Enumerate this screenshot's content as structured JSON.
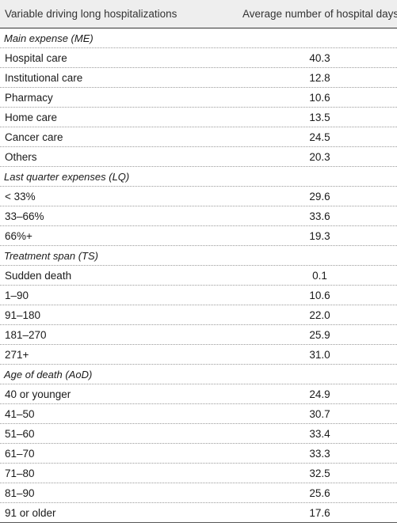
{
  "table": {
    "headers": {
      "col1": "Variable driving long hospitalizations",
      "col2": "Average number of hospital days"
    },
    "sections": [
      {
        "title": "Main expense (ME)",
        "rows": [
          {
            "label": "Hospital care",
            "value": "40.3"
          },
          {
            "label": "Institutional care",
            "value": "12.8"
          },
          {
            "label": "Pharmacy",
            "value": "10.6"
          },
          {
            "label": "Home care",
            "value": "13.5"
          },
          {
            "label": "Cancer care",
            "value": "24.5"
          },
          {
            "label": "Others",
            "value": "20.3"
          }
        ]
      },
      {
        "title": "Last quarter expenses (LQ)",
        "rows": [
          {
            "label": "< 33%",
            "value": "29.6"
          },
          {
            "label": "33–66%",
            "value": "33.6"
          },
          {
            "label": "66%+",
            "value": "19.3"
          }
        ]
      },
      {
        "title": "Treatment span (TS)",
        "rows": [
          {
            "label": "Sudden death",
            "value": "0.1"
          },
          {
            "label": "1–90",
            "value": "10.6"
          },
          {
            "label": "91–180",
            "value": "22.0"
          },
          {
            "label": "181–270",
            "value": "25.9"
          },
          {
            "label": "271+",
            "value": "31.0"
          }
        ]
      },
      {
        "title": "Age of death (AoD)",
        "rows": [
          {
            "label": "40 or younger",
            "value": "24.9"
          },
          {
            "label": "41–50",
            "value": "30.7"
          },
          {
            "label": "51–60",
            "value": "33.4"
          },
          {
            "label": "61–70",
            "value": "33.3"
          },
          {
            "label": "71–80",
            "value": "32.5"
          },
          {
            "label": "81–90",
            "value": "25.6"
          },
          {
            "label": "91 or older",
            "value": "17.6"
          }
        ]
      }
    ]
  }
}
